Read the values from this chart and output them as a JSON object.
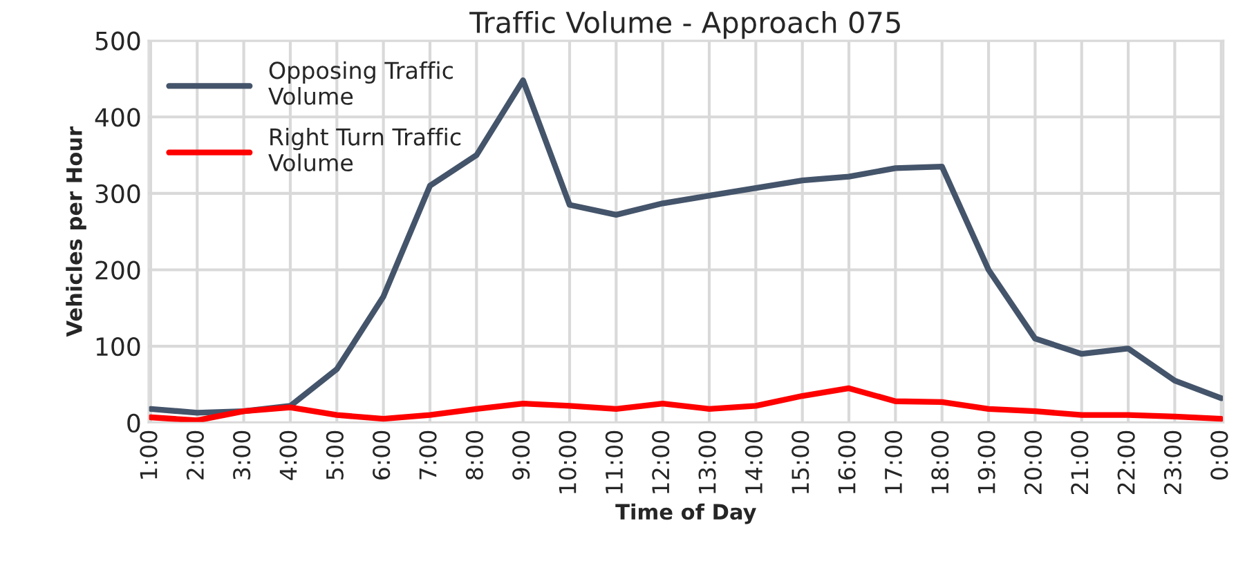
{
  "chart_data": {
    "type": "line",
    "title": "Traffic Volume - Approach 075",
    "xlabel": "Time of Day",
    "ylabel": "Vehicles per Hour",
    "categories": [
      "1:00",
      "2:00",
      "3:00",
      "4:00",
      "5:00",
      "6:00",
      "7:00",
      "8:00",
      "9:00",
      "10:00",
      "11:00",
      "12:00",
      "13:00",
      "14:00",
      "15:00",
      "16:00",
      "17:00",
      "18:00",
      "19:00",
      "20:00",
      "21:00",
      "22:00",
      "23:00",
      "0:00"
    ],
    "series": [
      {
        "name": "Opposing Traffic Volume",
        "color": "#44546a",
        "values": [
          18,
          13,
          15,
          22,
          70,
          165,
          310,
          350,
          448,
          285,
          272,
          287,
          297,
          307,
          317,
          322,
          333,
          335,
          200,
          110,
          90,
          97,
          55,
          32
        ]
      },
      {
        "name": "Right Turn Traffic Volume",
        "color": "#ff0000",
        "values": [
          7,
          3,
          15,
          20,
          10,
          5,
          10,
          18,
          25,
          22,
          18,
          25,
          18,
          22,
          35,
          45,
          28,
          27,
          18,
          15,
          10,
          10,
          8,
          5
        ]
      }
    ],
    "ylim": [
      0,
      500
    ],
    "yticks": [
      0,
      100,
      200,
      300,
      400,
      500
    ],
    "grid": true,
    "legend": "top left"
  }
}
